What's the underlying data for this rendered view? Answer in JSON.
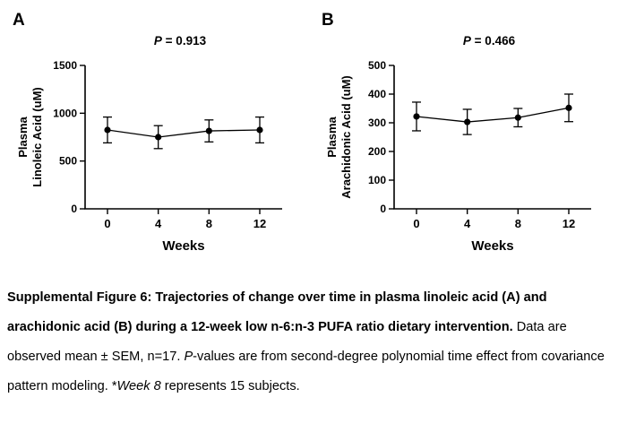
{
  "chart_data": [
    {
      "type": "line",
      "panel_label": "A",
      "p_label_prefix": "P",
      "p_label_rest": " = 0.913",
      "categories": [
        "0",
        "4",
        "8",
        "12"
      ],
      "values": [
        825,
        750,
        815,
        825
      ],
      "sem": [
        135,
        120,
        115,
        135
      ],
      "ylim": [
        0,
        1500
      ],
      "yticks": [
        0,
        500,
        1000,
        1500
      ],
      "ylabel_lines": [
        "Plasma",
        "Linoleic Acid (uM)"
      ],
      "xlabel": "Weeks",
      "grid": false,
      "legend": "none",
      "marker_color": "#000000",
      "line_color": "#000000"
    },
    {
      "type": "line",
      "panel_label": "B",
      "p_label_prefix": "P",
      "p_label_rest": " = 0.466",
      "categories": [
        "0",
        "4",
        "8",
        "12"
      ],
      "values": [
        322,
        303,
        318,
        352
      ],
      "sem": [
        50,
        44,
        32,
        48
      ],
      "ylim": [
        0,
        500
      ],
      "yticks": [
        0,
        100,
        200,
        300,
        400,
        500
      ],
      "ylabel_lines": [
        "Plasma",
        "Arachidonic Acid (uM)"
      ],
      "xlabel": "Weeks",
      "grid": false,
      "legend": "none",
      "marker_color": "#000000",
      "line_color": "#000000"
    }
  ],
  "caption": {
    "segments": [
      {
        "text": "Supplemental Figure 6: Trajectories of change over time in plasma linoleic acid (A) and arachidonic acid (B) during a 12-week low n-6:n-3 PUFA ratio dietary intervention.",
        "bold": true,
        "italic": false
      },
      {
        "text": " Data are observed mean ± SEM, n=17. ",
        "bold": false,
        "italic": false
      },
      {
        "text": "P",
        "bold": false,
        "italic": true
      },
      {
        "text": "-values are from second-degree polynomial time effect from covariance pattern modeling. *",
        "bold": false,
        "italic": false
      },
      {
        "text": "Week 8",
        "bold": false,
        "italic": true
      },
      {
        "text": " represents 15 subjects.",
        "bold": false,
        "italic": false
      }
    ]
  }
}
